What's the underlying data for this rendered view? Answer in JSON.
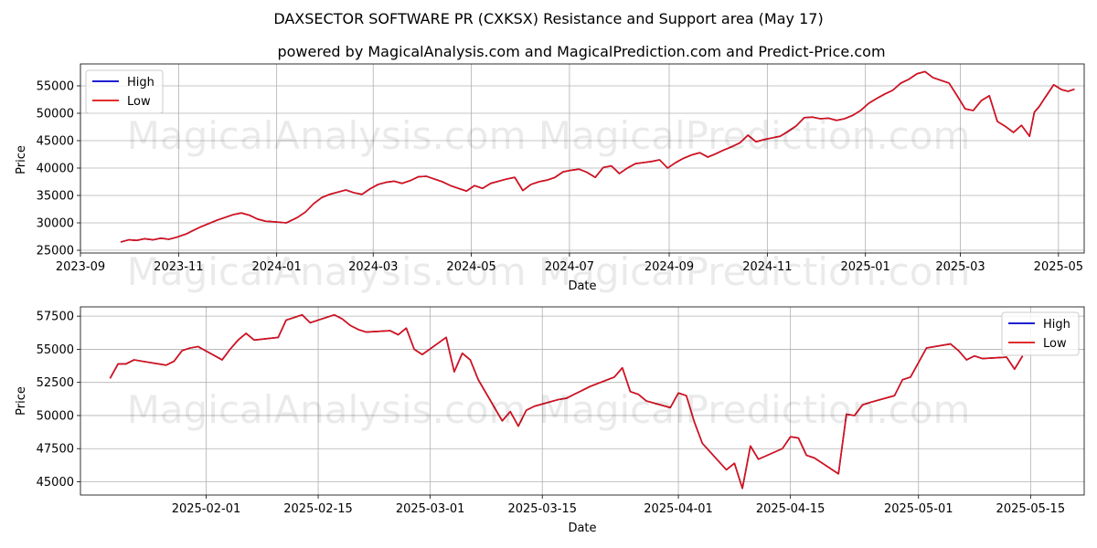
{
  "title": "DAXSECTOR SOFTWARE PR (CXKSX) Resistance and Support area (May 17)",
  "subtitle": "powered by MagicalAnalysis.com and MagicalPrediction.com and Predict-Price.com",
  "watermark": "MagicalAnalysis.com    MagicalPrediction.com",
  "colors": {
    "high": "#0000cc",
    "low": "#dd1111",
    "grid": "#b0b0b0"
  },
  "chart_data": [
    {
      "type": "line",
      "xlabel": "Date",
      "ylabel": "Price",
      "xlim": [
        0,
        624
      ],
      "ylim": [
        24500,
        59000
      ],
      "grid": true,
      "legend_position": "top-left",
      "legend": [
        "High",
        "Low"
      ],
      "xticks": [
        {
          "v": 0,
          "label": "2023-09"
        },
        {
          "v": 61,
          "label": "2023-11"
        },
        {
          "v": 122,
          "label": "2024-01"
        },
        {
          "v": 182,
          "label": "2024-03"
        },
        {
          "v": 243,
          "label": "2024-05"
        },
        {
          "v": 304,
          "label": "2024-07"
        },
        {
          "v": 366,
          "label": "2024-09"
        },
        {
          "v": 427,
          "label": "2024-11"
        },
        {
          "v": 488,
          "label": "2025-01"
        },
        {
          "v": 547,
          "label": "2025-03"
        },
        {
          "v": 608,
          "label": "2025-05"
        }
      ],
      "yticks": [
        25000,
        30000,
        35000,
        40000,
        45000,
        50000,
        55000
      ],
      "x": [
        25,
        30,
        35,
        40,
        45,
        50,
        55,
        60,
        66,
        70,
        75,
        80,
        85,
        90,
        95,
        100,
        105,
        110,
        115,
        120,
        128,
        135,
        140,
        145,
        150,
        155,
        160,
        165,
        170,
        175,
        180,
        185,
        190,
        195,
        200,
        205,
        210,
        215,
        220,
        225,
        230,
        235,
        240,
        245,
        250,
        255,
        260,
        265,
        270,
        275,
        280,
        285,
        290,
        295,
        300,
        305,
        310,
        315,
        320,
        325,
        330,
        335,
        340,
        345,
        350,
        355,
        360,
        365,
        370,
        375,
        380,
        385,
        390,
        395,
        400,
        405,
        410,
        415,
        420,
        425,
        430,
        435,
        440,
        445,
        450,
        455,
        460,
        465,
        470,
        475,
        480,
        485,
        490,
        495,
        500,
        505,
        510,
        515,
        520,
        525,
        530,
        535,
        540,
        545,
        550,
        555,
        560,
        565,
        570,
        575,
        580,
        585,
        590,
        593,
        596,
        600,
        605,
        610,
        614,
        618
      ],
      "series": [
        {
          "name": "High",
          "values": [
            26500,
            26900,
            26800,
            27100,
            26900,
            27200,
            27000,
            27400,
            28000,
            28600,
            29300,
            29900,
            30500,
            31000,
            31500,
            31800,
            31400,
            30700,
            30300,
            30200,
            30000,
            31000,
            32000,
            33500,
            34600,
            35200,
            35600,
            36000,
            35500,
            35200,
            36200,
            37000,
            37400,
            37600,
            37200,
            37700,
            38400,
            38500,
            38000,
            37500,
            36800,
            36300,
            35800,
            36800,
            36300,
            37200,
            37600,
            38000,
            38300,
            35900,
            37000,
            37500,
            37800,
            38300,
            39300,
            39600,
            39800,
            39200,
            38300,
            40100,
            40400,
            39000,
            40000,
            40800,
            41000,
            41200,
            41500,
            40000,
            41000,
            41800,
            42400,
            42800,
            42000,
            42600,
            43300,
            43900,
            44600,
            46000,
            44800,
            45200,
            45500,
            45800,
            46700,
            47700,
            49200,
            49300,
            49000,
            49100,
            48700,
            49000,
            49600,
            50500,
            51800,
            52700,
            53500,
            54200,
            55500,
            56200,
            57200,
            57600,
            56500,
            56000,
            55500,
            53200,
            50800,
            50500,
            52300,
            53200,
            48500,
            47600,
            46500,
            47800,
            45800,
            50200,
            51200,
            53000,
            55200,
            54300,
            54000,
            54400
          ]
        },
        {
          "name": "Low",
          "values": [
            26500,
            26900,
            26800,
            27100,
            26900,
            27200,
            27000,
            27400,
            28000,
            28600,
            29300,
            29900,
            30500,
            31000,
            31500,
            31800,
            31400,
            30700,
            30300,
            30200,
            30000,
            31000,
            32000,
            33500,
            34600,
            35200,
            35600,
            36000,
            35500,
            35200,
            36200,
            37000,
            37400,
            37600,
            37200,
            37700,
            38400,
            38500,
            38000,
            37500,
            36800,
            36300,
            35800,
            36800,
            36300,
            37200,
            37600,
            38000,
            38300,
            35900,
            37000,
            37500,
            37800,
            38300,
            39300,
            39600,
            39800,
            39200,
            38300,
            40100,
            40400,
            39000,
            40000,
            40800,
            41000,
            41200,
            41500,
            40000,
            41000,
            41800,
            42400,
            42800,
            42000,
            42600,
            43300,
            43900,
            44600,
            46000,
            44800,
            45200,
            45500,
            45800,
            46700,
            47700,
            49200,
            49300,
            49000,
            49100,
            48700,
            49000,
            49600,
            50500,
            51800,
            52700,
            53500,
            54200,
            55500,
            56200,
            57200,
            57600,
            56500,
            56000,
            55500,
            53200,
            50800,
            50500,
            52300,
            53200,
            48500,
            47600,
            46500,
            47800,
            45800,
            50200,
            51200,
            53000,
            55200,
            54300,
            54000,
            54400
          ]
        }
      ]
    },
    {
      "type": "line",
      "xlabel": "Date",
      "ylabel": "Price",
      "xlim": [
        -3.7,
        121.7
      ],
      "ylim": [
        44000,
        58200
      ],
      "grid": true,
      "legend_position": "top-right",
      "legend": [
        "High",
        "Low"
      ],
      "xticks": [
        {
          "v": 12,
          "label": "2025-02-01"
        },
        {
          "v": 26,
          "label": "2025-02-15"
        },
        {
          "v": 40,
          "label": "2025-03-01"
        },
        {
          "v": 54,
          "label": "2025-03-15"
        },
        {
          "v": 71,
          "label": "2025-04-01"
        },
        {
          "v": 85,
          "label": "2025-04-15"
        },
        {
          "v": 101,
          "label": "2025-05-01"
        },
        {
          "v": 115,
          "label": "2025-05-15"
        }
      ],
      "yticks": [
        45000,
        47500,
        50000,
        52500,
        55000,
        57500
      ],
      "x": [
        0,
        1,
        2,
        3,
        4,
        7,
        8,
        9,
        10,
        11,
        14,
        15,
        16,
        17,
        18,
        21,
        22,
        23,
        24,
        25,
        28,
        29,
        30,
        31,
        32,
        35,
        36,
        37,
        38,
        39,
        42,
        43,
        44,
        45,
        46,
        49,
        50,
        51,
        52,
        53,
        56,
        57,
        58,
        59,
        60,
        63,
        64,
        65,
        66,
        67,
        70,
        71,
        72,
        73,
        74,
        77,
        78,
        79,
        80,
        81,
        84,
        85,
        86,
        87,
        88,
        91,
        92,
        93,
        94,
        95,
        98,
        99,
        100,
        101,
        102,
        105,
        106,
        107,
        108,
        109,
        112,
        113,
        114
      ],
      "series": [
        {
          "name": "High",
          "values": [
            52800,
            53900,
            53900,
            54200,
            54100,
            53800,
            54100,
            54900,
            55100,
            55200,
            54200,
            55000,
            55700,
            56200,
            55700,
            55900,
            57200,
            57400,
            57600,
            57000,
            57600,
            57300,
            56800,
            56500,
            56300,
            56400,
            56100,
            56600,
            55000,
            54600,
            55900,
            53300,
            54700,
            54200,
            52700,
            49600,
            50300,
            49200,
            50400,
            50700,
            51200,
            51300,
            51600,
            51900,
            52200,
            52900,
            53600,
            51800,
            51600,
            51100,
            50600,
            51700,
            51500,
            49500,
            47900,
            45900,
            46400,
            44500,
            47700,
            46700,
            47500,
            48400,
            48300,
            47000,
            46800,
            45600,
            50100,
            50000,
            50800,
            51000,
            51500,
            52700,
            52900,
            54000,
            55100,
            55400,
            54900,
            54200,
            54500,
            54300,
            54400,
            53500,
            54500
          ]
        },
        {
          "name": "Low",
          "values": [
            52800,
            53900,
            53900,
            54200,
            54100,
            53800,
            54100,
            54900,
            55100,
            55200,
            54200,
            55000,
            55700,
            56200,
            55700,
            55900,
            57200,
            57400,
            57600,
            57000,
            57600,
            57300,
            56800,
            56500,
            56300,
            56400,
            56100,
            56600,
            55000,
            54600,
            55900,
            53300,
            54700,
            54200,
            52700,
            49600,
            50300,
            49200,
            50400,
            50700,
            51200,
            51300,
            51600,
            51900,
            52200,
            52900,
            53600,
            51800,
            51600,
            51100,
            50600,
            51700,
            51500,
            49500,
            47900,
            45900,
            46400,
            44500,
            47700,
            46700,
            47500,
            48400,
            48300,
            47000,
            46800,
            45600,
            50100,
            50000,
            50800,
            51000,
            51500,
            52700,
            52900,
            54000,
            55100,
            55400,
            54900,
            54200,
            54500,
            54300,
            54400,
            53500,
            54500
          ]
        }
      ]
    }
  ]
}
